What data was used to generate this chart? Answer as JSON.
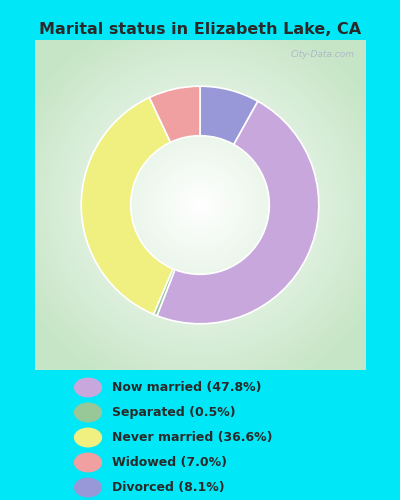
{
  "title": "Marital status in Elizabeth Lake, CA",
  "labels": [
    "Now married (47.8%)",
    "Separated (0.5%)",
    "Never married (36.6%)",
    "Widowed (7.0%)",
    "Divorced (8.1%)"
  ],
  "colors": [
    "#c8a8dc",
    "#98c898",
    "#f0f080",
    "#f0a0a0",
    "#9898d8"
  ],
  "bg_cyan": "#00e8f8",
  "bg_chart_center": "#ffffff",
  "bg_chart_edge": "#c0dcc0",
  "title_color": "#2a2a2a",
  "legend_text_color": "#2a2a2a",
  "watermark": "City-Data.com",
  "plot_sizes": [
    8.1,
    47.8,
    0.5,
    36.6,
    7.0
  ],
  "plot_color_indices": [
    4,
    0,
    1,
    2,
    3
  ],
  "donut_width": 0.38
}
